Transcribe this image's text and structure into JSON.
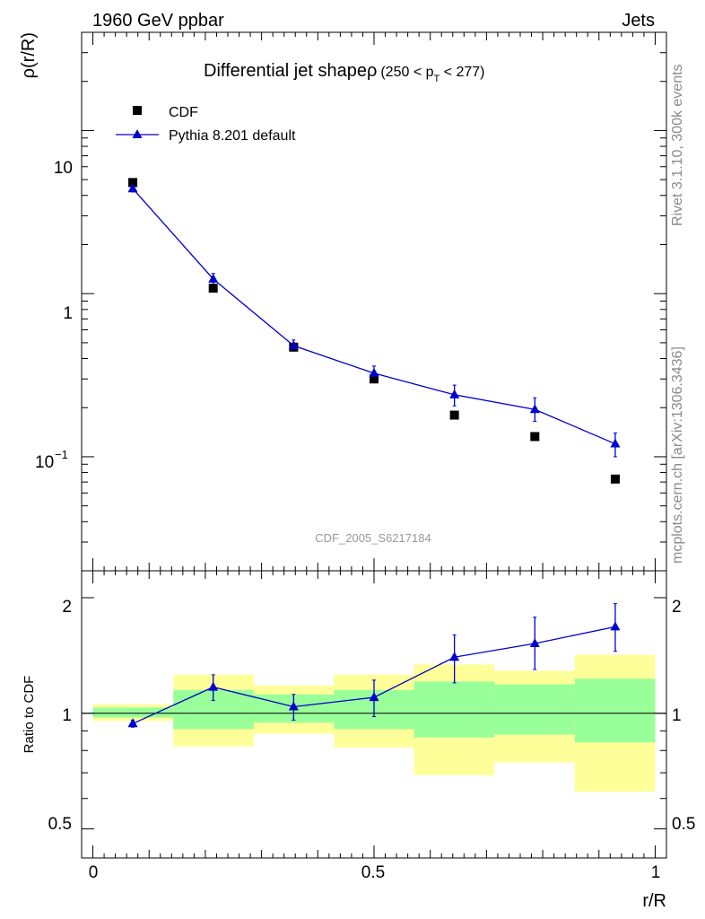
{
  "header": {
    "left": "1960 GeV ppbar",
    "right": "Jets"
  },
  "side": {
    "rivet": "Rivet 3.1.10,  300k events",
    "mcplots": "mcplots.cern.ch [arXiv:1306.3436]"
  },
  "chart_data": [
    {
      "type": "scatter",
      "title": "Differential jet shapeρ",
      "title_suffix": "(250 < p",
      "title_sub": "T",
      "title_end": " < 277)",
      "ylabel": "ρ(r/R)",
      "yscale": "log",
      "ylim": [
        0.02,
        40
      ],
      "xlim": [
        -0.02,
        1.02
      ],
      "ytick_labels": {
        "major": [
          "10",
          "1",
          "10"
        ],
        "exp": "−1"
      },
      "watermark": "CDF_2005_S6217184",
      "legend_position": "top-left",
      "series": [
        {
          "name": "CDF",
          "marker": "square",
          "color": "#000000",
          "x": [
            0.071,
            0.214,
            0.357,
            0.5,
            0.643,
            0.786,
            0.929
          ],
          "y": [
            4.8,
            1.08,
            0.47,
            0.3,
            0.18,
            0.133,
            0.073
          ]
        },
        {
          "name": "Pythia 8.201 default",
          "marker": "triangle",
          "color": "#0000cc",
          "x": [
            0.071,
            0.214,
            0.357,
            0.5,
            0.643,
            0.786,
            0.929
          ],
          "y": [
            4.4,
            1.23,
            0.48,
            0.325,
            0.24,
            0.195,
            0.12
          ],
          "err_lo": [
            0.2,
            0.09,
            0.035,
            0.03,
            0.035,
            0.03,
            0.02
          ],
          "err_hi": [
            0.2,
            0.1,
            0.04,
            0.035,
            0.035,
            0.035,
            0.02
          ]
        }
      ]
    },
    {
      "type": "line",
      "ylabel": "Ratio to CDF",
      "xlabel": "r/R",
      "yscale": "log",
      "ylim": [
        0.42,
        2.35
      ],
      "xlim": [
        -0.02,
        1.02
      ],
      "xticks": [
        0,
        0.5,
        1
      ],
      "xtick_labels": [
        "0",
        "0.5",
        "1"
      ],
      "yticks": [
        0.5,
        1,
        2
      ],
      "ytick_labels": [
        "0.5",
        "1",
        "2"
      ],
      "reference_line": 1,
      "bands": {
        "edges": [
          0.0,
          0.143,
          0.286,
          0.429,
          0.571,
          0.714,
          0.857,
          1.0
        ],
        "yellow": {
          "color": "#ffff99",
          "lo": [
            0.955,
            0.82,
            0.885,
            0.815,
            0.69,
            0.745,
            0.625
          ],
          "hi": [
            1.055,
            1.26,
            1.18,
            1.26,
            1.34,
            1.29,
            1.42
          ]
        },
        "green": {
          "color": "#99ff99",
          "lo": [
            0.975,
            0.91,
            0.945,
            0.91,
            0.865,
            0.88,
            0.84
          ],
          "hi": [
            1.035,
            1.15,
            1.12,
            1.15,
            1.21,
            1.19,
            1.23
          ]
        }
      },
      "series": [
        {
          "name": "Pythia 8.201 default",
          "marker": "triangle",
          "color": "#0000cc",
          "x": [
            0.071,
            0.214,
            0.357,
            0.5,
            0.643,
            0.786,
            0.929
          ],
          "y": [
            0.94,
            1.17,
            1.04,
            1.1,
            1.4,
            1.52,
            1.68
          ],
          "err_lo": [
            0.02,
            0.09,
            0.08,
            0.12,
            0.2,
            0.22,
            0.23
          ],
          "err_hi": [
            0.02,
            0.09,
            0.08,
            0.12,
            0.2,
            0.26,
            0.25
          ]
        }
      ]
    }
  ]
}
